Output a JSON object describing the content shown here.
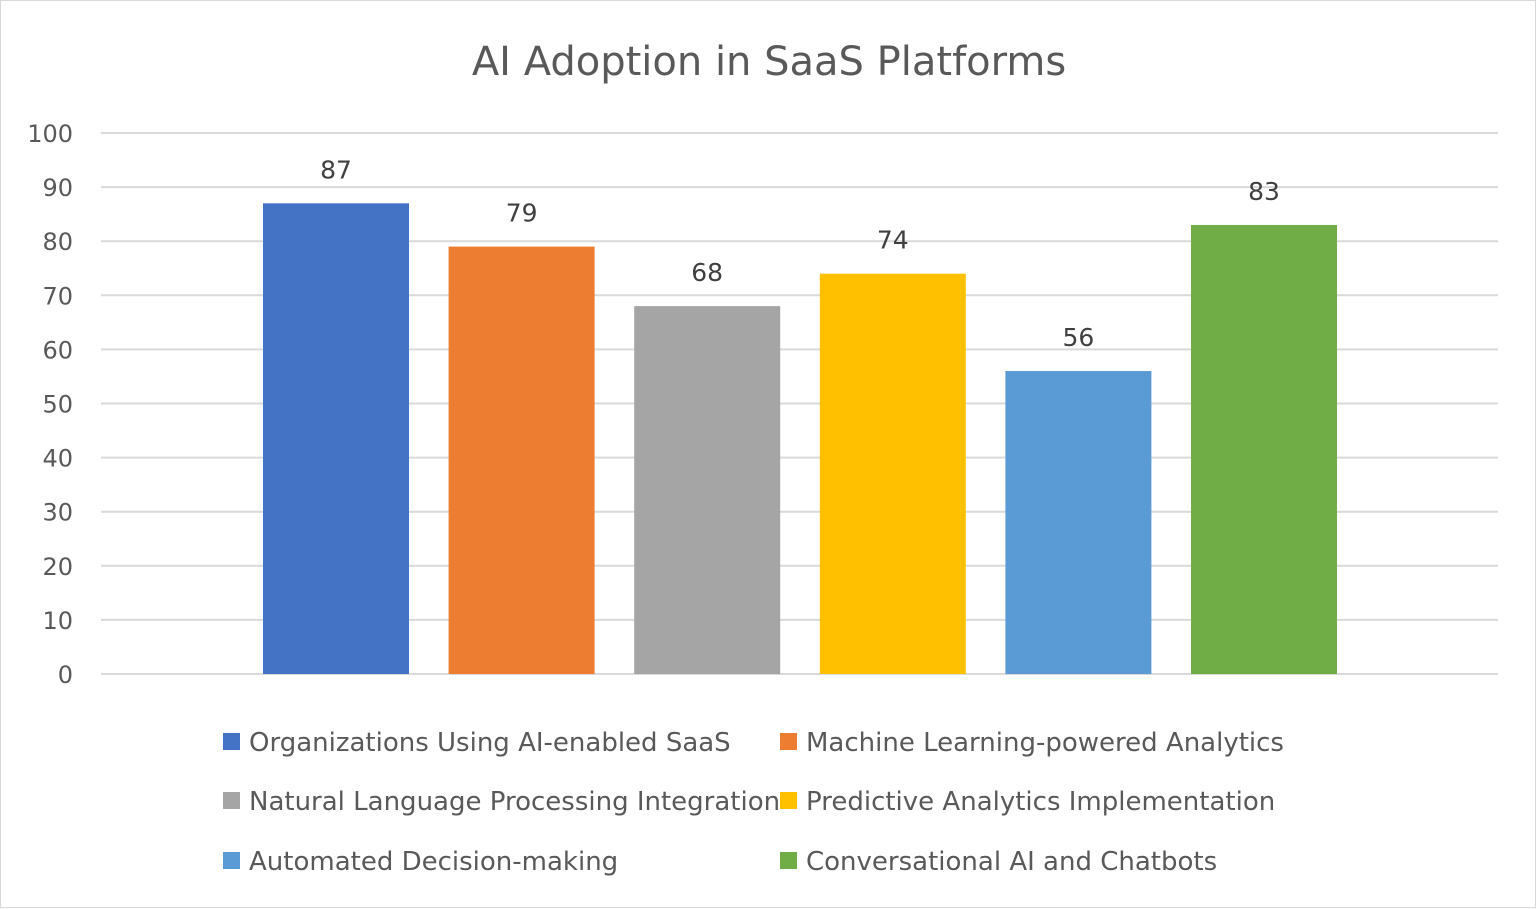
{
  "chart_data": {
    "type": "bar",
    "title": "AI Adoption in SaaS Platforms",
    "xlabel": "",
    "ylabel": "",
    "ylim": [
      0,
      100
    ],
    "yticks": [
      0,
      10,
      20,
      30,
      40,
      50,
      60,
      70,
      80,
      90,
      100
    ],
    "grid": true,
    "legend_position": "bottom",
    "data_labels": true,
    "series": [
      {
        "name": "Organizations Using AI-enabled SaaS",
        "value": 87,
        "color": "#4472C4"
      },
      {
        "name": "Machine Learning-powered Analytics",
        "value": 79,
        "color": "#ED7D31"
      },
      {
        "name": "Natural Language Processing Integration",
        "value": 68,
        "color": "#A5A5A5"
      },
      {
        "name": "Predictive Analytics Implementation",
        "value": 74,
        "color": "#FFC000"
      },
      {
        "name": "Automated Decision-making",
        "value": 56,
        "color": "#5B9BD5"
      },
      {
        "name": "Conversational AI and Chatbots",
        "value": 83,
        "color": "#70AD47"
      }
    ]
  }
}
